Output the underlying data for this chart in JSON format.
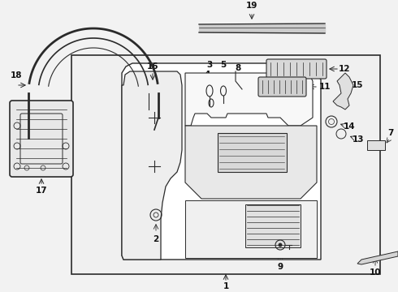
{
  "bg_color": "#f2f2f2",
  "white": "#ffffff",
  "lc": "#2a2a2a",
  "dot_bg": "#dde8f0",
  "figsize": [
    4.9,
    3.6
  ],
  "dpi": 100,
  "label_fs": 7.5,
  "label_color": "#111111"
}
